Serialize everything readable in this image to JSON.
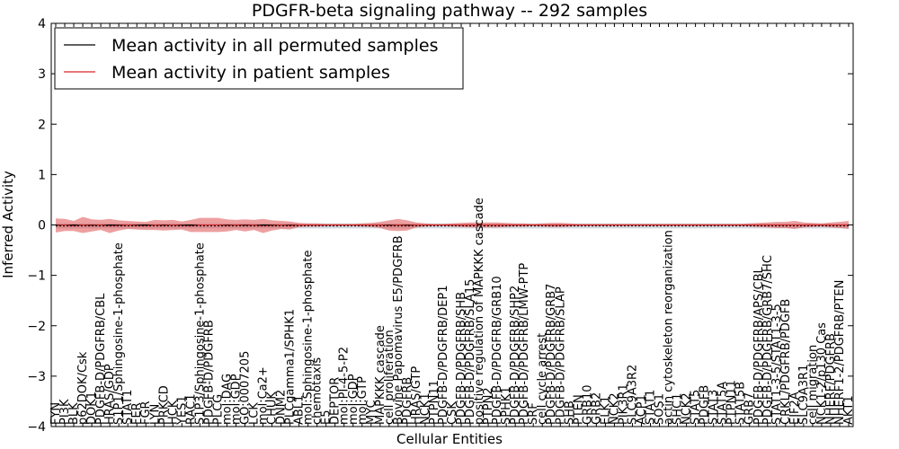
{
  "chart_data": {
    "type": "line",
    "title": "PDGFR-beta signaling pathway -- 292 samples",
    "xlabel": "Cellular Entities",
    "ylabel": "Inferred Activity",
    "ylim": [
      -4,
      4
    ],
    "yticks": [
      -4,
      -3,
      -2,
      -1,
      0,
      1,
      2,
      3,
      4
    ],
    "ytick_labels": [
      "−4",
      "−3",
      "−2",
      "−1",
      "0",
      "1",
      "2",
      "3",
      "4"
    ],
    "grid": false,
    "legend_position": "top-left",
    "categories": [
      "FYN",
      "PI3K",
      "BLK",
      "p62DOK/Csk",
      "DOK1",
      "PDGFB-D/PDGFRB/CBL",
      "HRAS/GDP",
      "S1P1/Sphingosine-1-phosphate",
      "STAT1",
      "FER",
      "FGR",
      "LYN",
      "PRKCD",
      "HCK",
      "YES1",
      "RAC1",
      "S1P3/Sphingosine-1-phosphate",
      "PDGFB-D/PDGFRB",
      "PLCG",
      "mol:DAG",
      "mol:GDP",
      "GO:0007205",
      "LCK",
      "mol:Ca2+",
      "CHUK",
      "DNM2",
      "PLCgamma1/SPHK1",
      "ABL1",
      "mol:Sphingosine-1-phosphate",
      "chemotaxis",
      "E5",
      "DEPTOR",
      "mol:PI-4-5-P2",
      "mol:GDP",
      "mol:GTP",
      "MYC",
      "MAPKKK cascade",
      "cell proliferation",
      "Bovine Papomavirus E5/PDGFRB",
      "PDGFRB",
      "HRAS/GTP",
      "NCK1",
      "PTPN11",
      "PDGFB-D/PDGFRB/DEP1",
      "CSK",
      "PDGFB-D/PDGFRB/SHB",
      "PDGFB-D/PDGFRB/SLA15",
      "positive regulation of MAPKKK cascade",
      "PTPN2",
      "PDGFB-D/PDGFRB/GRB10",
      "SPHK1",
      "PDGFB-D/PDGFRB/SHP2",
      "PDGFB-D/PDGFRB/LMW-PTP",
      "SRF",
      "cell cycle arrest",
      "PDGFB-D/PDGFRB/GRB7",
      "PDGFB-D/PDGFRB/SLAP",
      "SHB",
      "PTEN",
      "GRB10",
      "GRB2",
      "ELK1",
      "NCK2",
      "PIK3R1",
      "SLC9A3R2",
      "ACP1",
      "STAT1",
      "SOS1",
      "actin cytoskeleton reorganization",
      "SHC1",
      "NCK2",
      "STAT5",
      "PDGFB",
      "STAT3",
      "STAT5A",
      "PTPN11",
      "STAT5B",
      "GRB7",
      "PDGFB-D/PDGFRB/APS/CBL",
      "PDGFB-D/PDGFRB/GRB7/SHC",
      "STAT1-3-5/STAT1-3-5",
      "CRKL/PDGFRB/PDGFB",
      "EIF2A",
      "SLC9A3R1",
      "cell migration",
      "NCK1-2/p130 Cas",
      "NHERF/PDGFRB",
      "NHERF1-2/PDGFRB/PTEN",
      "AKT1"
    ],
    "series": [
      {
        "name": "Mean activity in all permuted samples",
        "color": "#000000",
        "values": [
          -0.02,
          -0.02,
          -0.02,
          -0.02,
          -0.02,
          -0.02,
          -0.02,
          -0.02,
          -0.02,
          -0.02,
          -0.02,
          -0.02,
          -0.02,
          -0.02,
          -0.02,
          -0.02,
          -0.02,
          -0.02,
          -0.02,
          -0.02,
          -0.02,
          -0.02,
          -0.02,
          -0.02,
          -0.02,
          -0.02,
          -0.02,
          -0.02,
          -0.02,
          -0.02,
          -0.02,
          -0.02,
          -0.02,
          -0.02,
          -0.02,
          -0.02,
          -0.02,
          -0.02,
          -0.02,
          -0.02,
          -0.02,
          -0.02,
          -0.02,
          -0.02,
          -0.02,
          -0.02,
          -0.02,
          -0.02,
          -0.02,
          -0.02,
          -0.02,
          -0.02,
          -0.02,
          -0.02,
          -0.02,
          -0.02,
          -0.02,
          -0.02,
          -0.02,
          -0.02,
          -0.02,
          -0.02,
          -0.02,
          -0.02,
          -0.02,
          -0.02,
          -0.02,
          -0.02,
          -0.02,
          -0.02,
          -0.02,
          -0.02,
          -0.02,
          -0.02,
          -0.02,
          -0.02,
          -0.02,
          -0.02,
          -0.02,
          -0.02,
          -0.02,
          -0.02,
          -0.02,
          -0.02,
          -0.02,
          -0.02,
          -0.02,
          -0.02,
          -0.02
        ],
        "band": [
          0.05,
          0.05,
          0.05,
          0.05,
          0.05,
          0.05,
          0.05,
          0.05,
          0.05,
          0.05,
          0.05,
          0.05,
          0.05,
          0.05,
          0.05,
          0.05,
          0.05,
          0.05,
          0.05,
          0.05,
          0.05,
          0.05,
          0.05,
          0.05,
          0.05,
          0.05,
          0.05,
          0.05,
          0.05,
          0.05,
          0.05,
          0.05,
          0.05,
          0.05,
          0.05,
          0.05,
          0.05,
          0.05,
          0.05,
          0.05,
          0.05,
          0.05,
          0.05,
          0.05,
          0.05,
          0.05,
          0.05,
          0.05,
          0.05,
          0.05,
          0.05,
          0.05,
          0.05,
          0.05,
          0.05,
          0.05,
          0.05,
          0.05,
          0.05,
          0.05,
          0.05,
          0.05,
          0.05,
          0.05,
          0.05,
          0.05,
          0.05,
          0.05,
          0.05,
          0.05,
          0.05,
          0.05,
          0.05,
          0.05,
          0.05,
          0.05,
          0.05,
          0.05,
          0.05,
          0.05,
          0.05,
          0.05,
          0.05,
          0.05,
          0.05,
          0.05,
          0.05,
          0.05,
          0.05
        ]
      },
      {
        "name": "Mean activity in patient samples",
        "color": "#d62728",
        "band_color": "#e05050",
        "values": [
          -0.01,
          0.0,
          -0.02,
          0.0,
          -0.01,
          0.0,
          -0.02,
          -0.01,
          0.0,
          -0.01,
          -0.02,
          0.0,
          -0.01,
          0.0,
          -0.01,
          -0.02,
          0.0,
          0.0,
          0.0,
          -0.01,
          0.0,
          -0.01,
          0.0,
          -0.02,
          -0.01,
          0.0,
          -0.01,
          0.0,
          0.0,
          0.0,
          0.0,
          0.0,
          0.0,
          0.0,
          0.0,
          0.0,
          0.0,
          -0.01,
          0.0,
          -0.01,
          0.0,
          0.0,
          0.0,
          0.0,
          0.0,
          0.0,
          0.0,
          0.0,
          0.0,
          0.0,
          0.0,
          0.0,
          0.0,
          0.0,
          0.0,
          0.0,
          0.0,
          0.0,
          0.0,
          0.0,
          0.0,
          0.0,
          0.0,
          0.0,
          0.0,
          0.0,
          0.0,
          0.0,
          0.0,
          0.0,
          0.0,
          0.0,
          0.0,
          0.0,
          0.0,
          0.0,
          0.0,
          0.0,
          0.0,
          0.0,
          0.0,
          0.0,
          0.0,
          0.0,
          0.0,
          0.0,
          0.0,
          0.0,
          0.0
        ],
        "band": [
          0.14,
          0.12,
          0.1,
          0.16,
          0.12,
          0.1,
          0.14,
          0.1,
          0.08,
          0.08,
          0.08,
          0.1,
          0.1,
          0.1,
          0.08,
          0.12,
          0.14,
          0.14,
          0.14,
          0.12,
          0.1,
          0.12,
          0.1,
          0.14,
          0.1,
          0.08,
          0.08,
          0.04,
          0.03,
          0.03,
          0.02,
          0.02,
          0.02,
          0.02,
          0.03,
          0.04,
          0.06,
          0.1,
          0.12,
          0.1,
          0.05,
          0.03,
          0.02,
          0.02,
          0.03,
          0.04,
          0.05,
          0.05,
          0.05,
          0.05,
          0.04,
          0.03,
          0.03,
          0.02,
          0.03,
          0.04,
          0.04,
          0.03,
          0.02,
          0.02,
          0.02,
          0.02,
          0.02,
          0.02,
          0.02,
          0.02,
          0.02,
          0.02,
          0.02,
          0.02,
          0.02,
          0.02,
          0.02,
          0.02,
          0.02,
          0.02,
          0.02,
          0.03,
          0.04,
          0.05,
          0.06,
          0.06,
          0.08,
          0.05,
          0.04,
          0.03,
          0.05,
          0.06,
          0.08
        ]
      }
    ]
  }
}
